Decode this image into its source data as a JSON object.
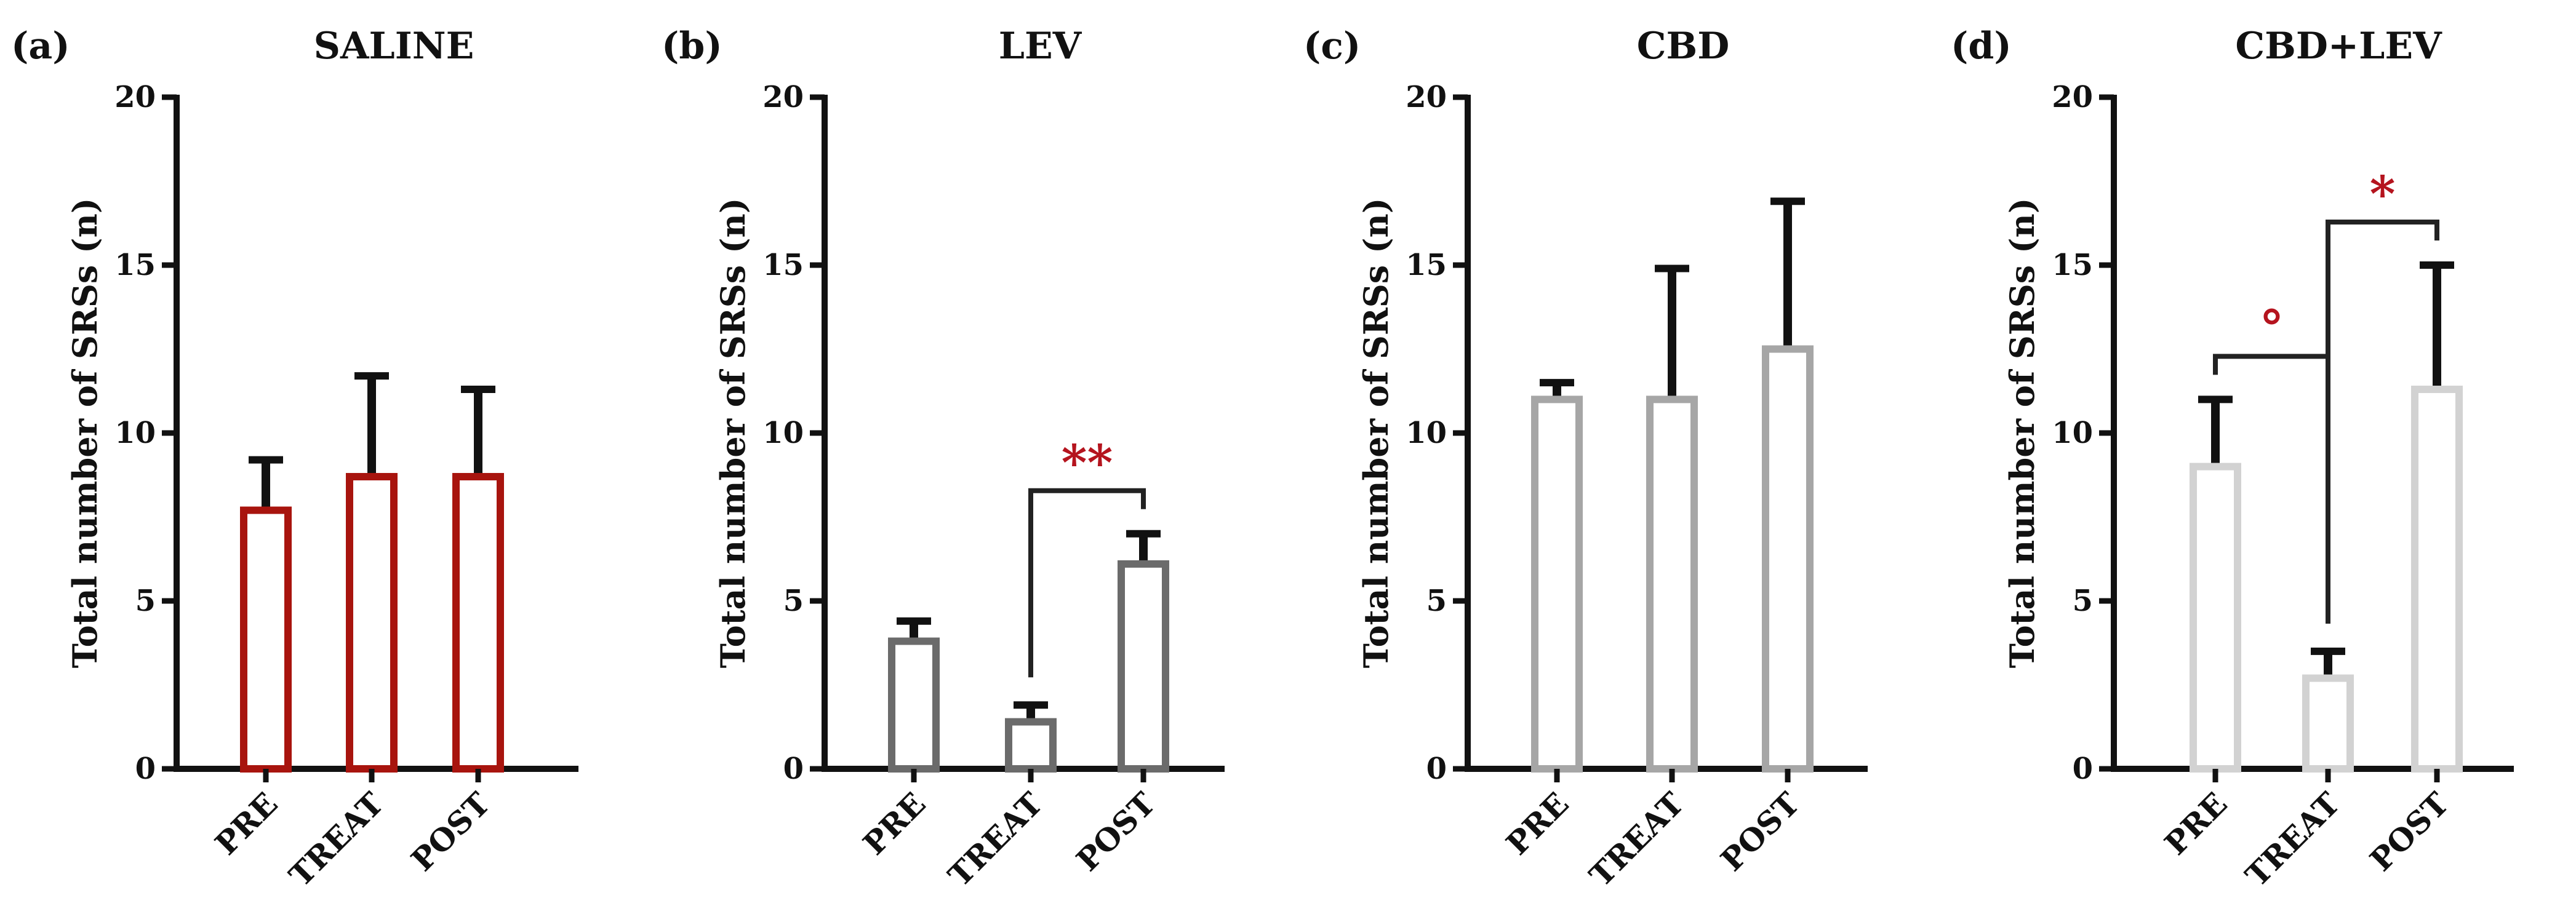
{
  "figure": {
    "panels": [
      {
        "label": "(a)",
        "title": "SALINE"
      },
      {
        "label": "(b)",
        "title": "LEV"
      },
      {
        "label": "(c)",
        "title": "CBD"
      },
      {
        "label": "(d)",
        "title": "CBD+LEV"
      }
    ]
  },
  "chart_data": [
    {
      "type": "bar",
      "panel": "(a)",
      "title": "SALINE",
      "categories": [
        "PRE",
        "TREAT",
        "POST"
      ],
      "values": [
        7.7,
        8.7,
        8.7
      ],
      "errors": [
        1.5,
        3.0,
        2.6
      ],
      "ylabel": "Total number of SRSs (n)",
      "ylim": [
        0,
        20
      ],
      "yticks": [
        0,
        5,
        10,
        15,
        20
      ],
      "bar_color": "#a8140e",
      "significance": []
    },
    {
      "type": "bar",
      "panel": "(b)",
      "title": "LEV",
      "categories": [
        "PRE",
        "TREAT",
        "POST"
      ],
      "values": [
        3.8,
        1.4,
        6.1
      ],
      "errors": [
        0.6,
        0.5,
        0.9
      ],
      "ylabel": "Total number of SRSs (n)",
      "ylim": [
        0,
        20
      ],
      "yticks": [
        0,
        5,
        10,
        15,
        20
      ],
      "bar_color": "#6b6b6b",
      "significance": [
        {
          "from": "TREAT",
          "to": "POST",
          "text": "**",
          "color": "#b5141e"
        }
      ]
    },
    {
      "type": "bar",
      "panel": "(c)",
      "title": "CBD",
      "categories": [
        "PRE",
        "TREAT",
        "POST"
      ],
      "values": [
        11.0,
        11.0,
        12.5
      ],
      "errors": [
        0.5,
        3.9,
        4.4
      ],
      "ylabel": "Total number of SRSs (n)",
      "ylim": [
        0,
        20
      ],
      "yticks": [
        0,
        5,
        10,
        15,
        20
      ],
      "bar_color": "#a6a6a6",
      "significance": []
    },
    {
      "type": "bar",
      "panel": "(d)",
      "title": "CBD+LEV",
      "categories": [
        "PRE",
        "TREAT",
        "POST"
      ],
      "values": [
        9.0,
        2.7,
        11.3
      ],
      "errors": [
        2.0,
        0.8,
        3.7
      ],
      "ylabel": "Total number of SRSs (n)",
      "ylim": [
        0,
        20
      ],
      "yticks": [
        0,
        5,
        10,
        15,
        20
      ],
      "bar_color": "#d2d2d2",
      "significance": [
        {
          "from": "PRE",
          "to": "TREAT",
          "text": "°",
          "color": "#b5141e"
        },
        {
          "from": "TREAT",
          "to": "POST",
          "text": "*",
          "color": "#b5141e"
        }
      ]
    }
  ]
}
